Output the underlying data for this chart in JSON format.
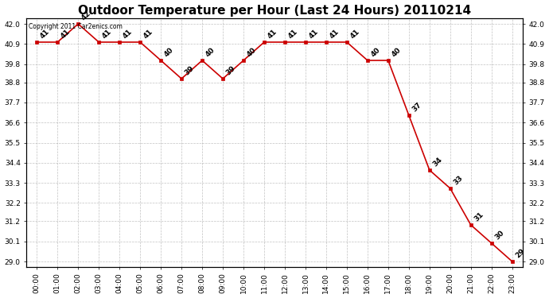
{
  "title": "Outdoor Temperature per Hour (Last 24 Hours) 20110214",
  "copyright": "Copyright 2011 Car2enics.com",
  "hours": [
    "00:00",
    "01:00",
    "02:00",
    "03:00",
    "04:00",
    "05:00",
    "06:00",
    "07:00",
    "08:00",
    "09:00",
    "10:00",
    "11:00",
    "12:00",
    "13:00",
    "14:00",
    "15:00",
    "16:00",
    "17:00",
    "18:00",
    "19:00",
    "20:00",
    "21:00",
    "22:00",
    "23:00"
  ],
  "values": [
    41,
    41,
    42,
    41,
    41,
    41,
    40,
    39,
    40,
    39,
    40,
    41,
    41,
    41,
    41,
    41,
    40,
    40,
    37,
    34,
    33,
    31,
    30,
    29
  ],
  "line_color": "#cc0000",
  "marker_color": "#cc0000",
  "background_color": "#ffffff",
  "grid_color": "#999999",
  "title_fontsize": 11,
  "label_fontsize": 6.5,
  "annotation_fontsize": 6.5,
  "ylim_min": 29.0,
  "ylim_max": 42.0,
  "yticks": [
    29.0,
    30.1,
    31.2,
    32.2,
    33.3,
    34.4,
    35.5,
    36.6,
    37.7,
    38.8,
    39.8,
    40.9,
    42.0
  ]
}
